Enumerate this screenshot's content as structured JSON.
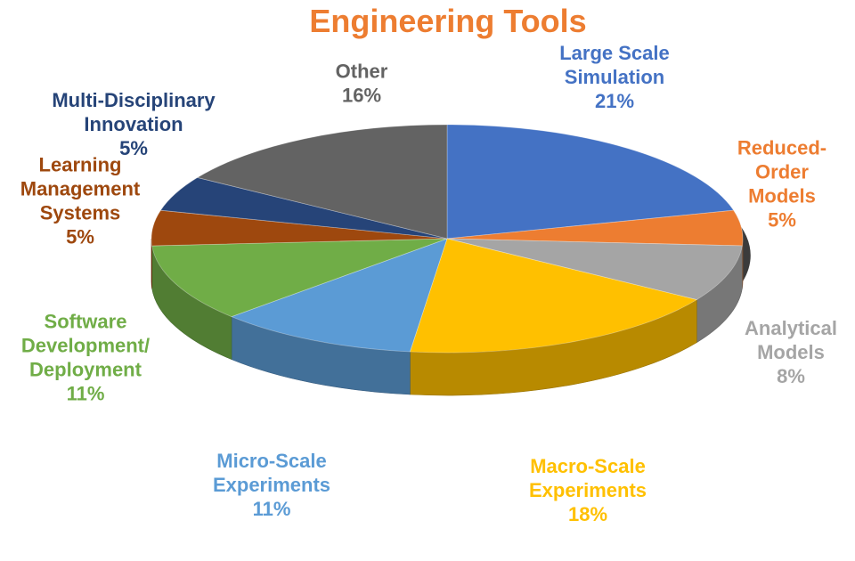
{
  "chart_data": {
    "type": "pie",
    "title": "Engineering Tools",
    "title_color": "#ED7D31",
    "three_d": true,
    "legend": "none",
    "slices": [
      {
        "label_lines": [
          "Large Scale",
          "Simulation"
        ],
        "value_label": "21%",
        "value": 21,
        "color": "#4472C4",
        "label_color": "#4472C4"
      },
      {
        "label_lines": [
          "Reduced-",
          "Order",
          "Models"
        ],
        "value_label": "5%",
        "value": 5,
        "color": "#ED7D31",
        "label_color": "#ED7D31"
      },
      {
        "label_lines": [
          "Analytical",
          "Models"
        ],
        "value_label": "8%",
        "value": 8,
        "color": "#A5A5A5",
        "label_color": "#A5A5A5"
      },
      {
        "label_lines": [
          "Macro-Scale",
          "Experiments"
        ],
        "value_label": "18%",
        "value": 18,
        "color": "#FFC000",
        "label_color": "#FFC000"
      },
      {
        "label_lines": [
          "Micro-Scale",
          "Experiments"
        ],
        "value_label": "11%",
        "value": 11,
        "color": "#5B9BD5",
        "label_color": "#5B9BD5"
      },
      {
        "label_lines": [
          "Software",
          "Development/",
          "Deployment"
        ],
        "value_label": "11%",
        "value": 11,
        "color": "#70AD47",
        "label_color": "#70AD47"
      },
      {
        "label_lines": [
          "Learning",
          "Management",
          "Systems"
        ],
        "value_label": "5%",
        "value": 5,
        "color": "#9E480E",
        "label_color": "#9E480E"
      },
      {
        "label_lines": [
          "Multi-Disciplinary",
          "Innovation"
        ],
        "value_label": "5%",
        "value": 5,
        "color": "#264478",
        "label_color": "#264478"
      },
      {
        "label_lines": [
          "Other"
        ],
        "value_label": "16%",
        "value": 16,
        "color": "#636363",
        "label_color": "#636363"
      }
    ]
  }
}
